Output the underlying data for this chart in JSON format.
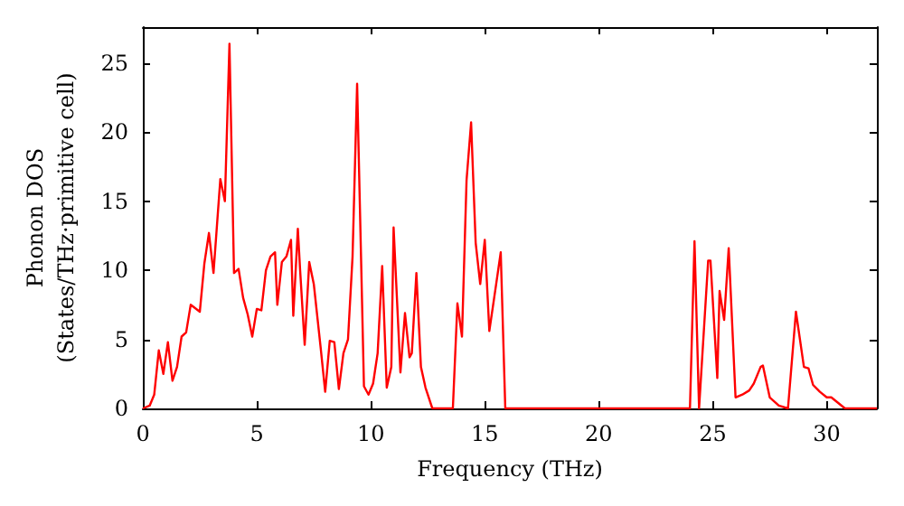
{
  "chart_data": {
    "type": "line",
    "xlabel": "Frequency (THz)",
    "ylabel": "Phonon DOS\n(States/THz·primitive cell)",
    "xlim": [
      0,
      32.2
    ],
    "xticks": [
      0,
      5,
      10,
      15,
      20,
      25,
      30
    ],
    "ylim": [
      0,
      27.6
    ],
    "yticks": [
      0,
      5,
      10,
      15,
      20,
      25
    ],
    "grid": false,
    "marker": "none",
    "line_style": "solid",
    "series": [
      {
        "color": "#ff0000",
        "x": [
          0,
          0.3,
          0.5,
          0.7,
          0.9,
          1.1,
          1.3,
          1.5,
          1.7,
          1.9,
          2.1,
          2.5,
          2.7,
          2.9,
          3.1,
          3.4,
          3.6,
          3.8,
          4.0,
          4.2,
          4.4,
          4.6,
          4.8,
          5.0,
          5.2,
          5.4,
          5.6,
          5.8,
          5.9,
          6.1,
          6.3,
          6.5,
          6.6,
          6.8,
          6.9,
          7.1,
          7.3,
          7.5,
          7.8,
          8.0,
          8.2,
          8.4,
          8.6,
          8.8,
          9.0,
          9.2,
          9.4,
          9.7,
          9.9,
          10.1,
          10.3,
          10.5,
          10.7,
          10.9,
          11.0,
          11.3,
          11.5,
          11.7,
          11.8,
          12.0,
          12.2,
          12.4,
          12.7,
          13.6,
          13.8,
          14.0,
          14.2,
          14.4,
          14.6,
          14.8,
          15.0,
          15.2,
          15.5,
          15.7,
          15.9,
          24.0,
          24.2,
          24.4,
          24.8,
          24.9,
          25.2,
          25.3,
          25.5,
          25.7,
          26.0,
          26.3,
          26.6,
          26.8,
          27.1,
          27.2,
          27.5,
          27.9,
          28.3,
          28.65,
          29.0,
          29.2,
          29.4,
          29.7,
          30.0,
          30.2,
          30.8,
          32.2
        ],
        "values": [
          0,
          0.2,
          1,
          4.2,
          2.5,
          4.8,
          2,
          3,
          5.2,
          5.5,
          7.5,
          7,
          10.5,
          12.7,
          9.8,
          16.6,
          15,
          26.4,
          9.8,
          10.1,
          8,
          6.8,
          5.2,
          7.2,
          7.1,
          10,
          11,
          11.3,
          7.5,
          10.6,
          11,
          12.2,
          6.7,
          13,
          10,
          4.6,
          10.6,
          9,
          4.4,
          1.2,
          4.9,
          4.8,
          1.4,
          4,
          5,
          11,
          23.5,
          1.6,
          1,
          1.8,
          4,
          10.3,
          1.5,
          3,
          13.1,
          2.6,
          6.9,
          3.7,
          4,
          9.8,
          3,
          1.5,
          0,
          0,
          7.6,
          5.2,
          16.5,
          20.7,
          12,
          9,
          12.2,
          5.6,
          9,
          11.3,
          0,
          0,
          12.1,
          0,
          10.7,
          10.7,
          2.2,
          8.5,
          6.4,
          11.6,
          0.8,
          1.0,
          1.3,
          1.8,
          3.0,
          3.1,
          0.8,
          0.2,
          0,
          7.0,
          3.0,
          2.9,
          1.7,
          1.2,
          0.8,
          0.8,
          0,
          0
        ]
      }
    ]
  }
}
